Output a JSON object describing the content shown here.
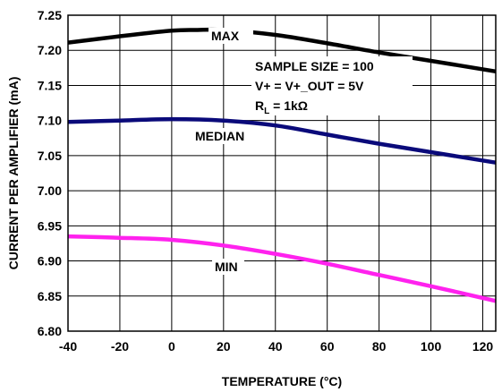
{
  "chart_data": {
    "type": "line",
    "title": "",
    "xlabel": "TEMPERATURE (°C)",
    "ylabel": "CURRENT PER AMPLIFIER (mA)",
    "xlim": [
      -40,
      125
    ],
    "ylim": [
      6.8,
      7.25
    ],
    "x_ticks": [
      "-40",
      "-20",
      "0",
      "20",
      "40",
      "60",
      "80",
      "100",
      "120"
    ],
    "y_ticks": [
      "6.80",
      "6.85",
      "6.90",
      "6.95",
      "7.00",
      "7.05",
      "7.10",
      "7.15",
      "7.20",
      "7.25"
    ],
    "grid": true,
    "legend": "none",
    "annotations": {
      "line1": "SAMPLE SIZE = 100",
      "line2": "V+ = V+_OUT = 5V",
      "line3_main": "R",
      "line3_sub": "L",
      "line3_rest": " = 1kΩ"
    },
    "series": [
      {
        "name": "MAX",
        "color": "#000000",
        "x": [
          -40,
          -20,
          0,
          10,
          20,
          40,
          60,
          80,
          100,
          125
        ],
        "y": [
          7.211,
          7.22,
          7.228,
          7.229,
          7.229,
          7.222,
          7.21,
          7.197,
          7.185,
          7.17
        ]
      },
      {
        "name": "MEDIAN",
        "color": "#0a0a7a",
        "x": [
          -40,
          -20,
          0,
          20,
          40,
          60,
          80,
          100,
          125
        ],
        "y": [
          7.098,
          7.1,
          7.102,
          7.1,
          7.093,
          7.08,
          7.067,
          7.055,
          7.04
        ]
      },
      {
        "name": "MIN",
        "color": "#ff22ee",
        "x": [
          -40,
          -20,
          0,
          20,
          40,
          60,
          80,
          100,
          125
        ],
        "y": [
          6.935,
          6.933,
          6.93,
          6.922,
          6.91,
          6.896,
          6.88,
          6.864,
          6.843
        ]
      }
    ]
  }
}
